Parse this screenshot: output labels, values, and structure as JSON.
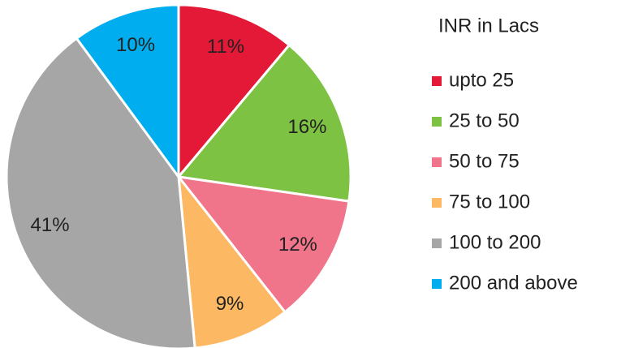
{
  "chart_data": {
    "type": "pie",
    "legend_title": "INR in Lacs",
    "categories": [
      "upto 25",
      "25 to 50",
      "50 to 75",
      "75 to 100",
      "100 to 200",
      "200 and above"
    ],
    "values": [
      11,
      16,
      12,
      9,
      41,
      10
    ],
    "value_labels": [
      "11%",
      "16%",
      "12%",
      "9%",
      "41%",
      "10%"
    ],
    "colors": [
      "#e31937",
      "#7dc242",
      "#f0748a",
      "#fdb863",
      "#a6a6a6",
      "#00aeef"
    ],
    "legend": "right"
  }
}
